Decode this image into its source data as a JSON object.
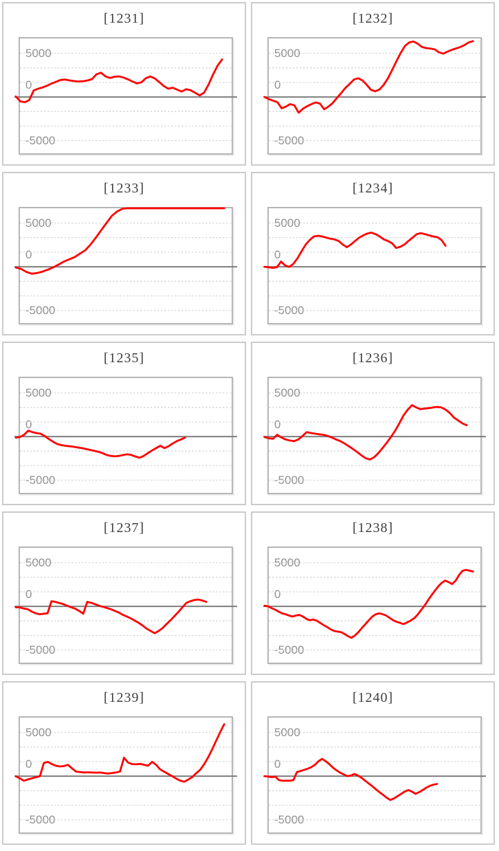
{
  "page": {
    "background": "#ffffff"
  },
  "axis": {
    "labels": [
      "5000",
      "0",
      "-5000"
    ],
    "label_values": [
      5000,
      0,
      -5000
    ],
    "label_color": "#8f8f8f",
    "gridline_values": [
      5000,
      3333,
      1667,
      0,
      -1667,
      -3333,
      -5000
    ],
    "gridline_color": "#dadada",
    "zero_line_color": "#7d7d7d",
    "ylim_top": 6700,
    "ylim_bottom": -6450,
    "grid_on": true
  },
  "series_style": {
    "color": "#fe0000",
    "width": 2.8
  },
  "chart_data": [
    {
      "type": "line",
      "title": "[1231]",
      "machine_no": "1231",
      "x_end_fraction": 0.955,
      "values": [
        60,
        -500,
        -600,
        -350,
        750,
        950,
        1100,
        1300,
        1550,
        1750,
        1950,
        2000,
        1900,
        1820,
        1780,
        1800,
        1900,
        2050,
        2600,
        2780,
        2350,
        2180,
        2320,
        2350,
        2230,
        2020,
        1780,
        1560,
        1680,
        2150,
        2350,
        2120,
        1700,
        1250,
        950,
        1060,
        830,
        620,
        900,
        760,
        480,
        180,
        500,
        1450,
        2600,
        3600,
        4300
      ]
    },
    {
      "type": "line",
      "title": "[1232]",
      "machine_no": "1232",
      "x_end_fraction": 0.965,
      "values": [
        0,
        -250,
        -420,
        -600,
        -1300,
        -1100,
        -820,
        -950,
        -1800,
        -1350,
        -1060,
        -820,
        -620,
        -760,
        -1400,
        -1100,
        -700,
        -100,
        450,
        1050,
        1500,
        2000,
        2150,
        1900,
        1400,
        820,
        650,
        860,
        1400,
        2150,
        3100,
        4100,
        5050,
        5850,
        6250,
        6350,
        6100,
        5720,
        5600,
        5550,
        5450,
        5120,
        4960,
        5200,
        5400,
        5560,
        5720,
        5950,
        6250,
        6400
      ]
    },
    {
      "type": "line",
      "title": "[1233]",
      "machine_no": "1233",
      "x_end_fraction": 0.965,
      "values": [
        -80,
        -250,
        -600,
        -800,
        -720,
        -550,
        -330,
        -70,
        250,
        600,
        850,
        1100,
        1500,
        1900,
        2550,
        3350,
        4200,
        5050,
        5850,
        6350,
        6650,
        6700,
        6700,
        6700,
        6700,
        6700,
        6700,
        6700,
        6700,
        6700,
        6700,
        6700,
        6700,
        6700,
        6700,
        6700,
        6700,
        6700,
        6700,
        6700
      ]
    },
    {
      "type": "line",
      "title": "[1234]",
      "machine_no": "1234",
      "x_end_fraction": 0.835,
      "values": [
        0,
        -60,
        -120,
        -60,
        600,
        150,
        -20,
        340,
        980,
        1770,
        2550,
        3080,
        3470,
        3550,
        3470,
        3340,
        3210,
        3130,
        2950,
        2550,
        2240,
        2550,
        2950,
        3340,
        3600,
        3810,
        3915,
        3730,
        3470,
        3130,
        2950,
        2690,
        2160,
        2290,
        2550,
        2950,
        3340,
        3730,
        3860,
        3730,
        3600,
        3470,
        3390,
        3080,
        2400
      ]
    },
    {
      "type": "line",
      "title": "[1235]",
      "machine_no": "1235",
      "x_end_fraction": 0.78,
      "values": [
        -120,
        -60,
        200,
        670,
        510,
        400,
        330,
        60,
        -280,
        -590,
        -850,
        -980,
        -1060,
        -1110,
        -1170,
        -1250,
        -1320,
        -1430,
        -1530,
        -1640,
        -1740,
        -1900,
        -2110,
        -2210,
        -2270,
        -2210,
        -2110,
        -2030,
        -2110,
        -2290,
        -2430,
        -2210,
        -1900,
        -1590,
        -1320,
        -1060,
        -1320,
        -1110,
        -800,
        -530,
        -330,
        -120
      ]
    },
    {
      "type": "line",
      "title": "[1236]",
      "machine_no": "1236",
      "x_end_fraction": 0.935,
      "values": [
        -60,
        -200,
        -250,
        200,
        -120,
        -330,
        -460,
        -530,
        -330,
        60,
        510,
        400,
        330,
        250,
        200,
        60,
        -120,
        -330,
        -530,
        -800,
        -1110,
        -1430,
        -1770,
        -2160,
        -2480,
        -2630,
        -2370,
        -1900,
        -1320,
        -720,
        -60,
        670,
        1510,
        2430,
        3080,
        3600,
        3340,
        3130,
        3210,
        3260,
        3340,
        3390,
        3340,
        3080,
        2690,
        2160,
        1840,
        1500,
        1300
      ]
    },
    {
      "type": "line",
      "title": "[1237]",
      "machine_no": "1237",
      "x_end_fraction": 0.88,
      "values": [
        -100,
        -120,
        -250,
        -330,
        -590,
        -800,
        -905,
        -850,
        -800,
        590,
        510,
        380,
        250,
        60,
        -120,
        -280,
        -530,
        -850,
        510,
        400,
        250,
        60,
        -60,
        -200,
        -330,
        -530,
        -720,
        -980,
        -1170,
        -1380,
        -1640,
        -1900,
        -2210,
        -2560,
        -2820,
        -3080,
        -2820,
        -2480,
        -2030,
        -1590,
        -1110,
        -640,
        -120,
        400,
        590,
        720,
        780,
        670,
        510
      ]
    },
    {
      "type": "line",
      "title": "[1238]",
      "machine_no": "1238",
      "x_end_fraction": 0.965,
      "values": [
        60,
        0,
        -200,
        -380,
        -590,
        -800,
        -905,
        -1060,
        -1170,
        -1060,
        -980,
        -1170,
        -1430,
        -1590,
        -1510,
        -1640,
        -1900,
        -2160,
        -2370,
        -2630,
        -2820,
        -2890,
        -2950,
        -3160,
        -3420,
        -3600,
        -3340,
        -2950,
        -2480,
        -2030,
        -1590,
        -1170,
        -905,
        -800,
        -905,
        -1060,
        -1320,
        -1590,
        -1770,
        -1900,
        -2030,
        -1840,
        -1640,
        -1380,
        -980,
        -460,
        60,
        670,
        1250,
        1770,
        2290,
        2690,
        2950,
        2770,
        2560,
        2950,
        3600,
        4080,
        4180,
        4080,
        3990
      ]
    },
    {
      "type": "line",
      "title": "[1239]",
      "machine_no": "1239",
      "x_end_fraction": 0.965,
      "values": [
        -20,
        -250,
        -530,
        -380,
        -250,
        -120,
        -20,
        1500,
        1640,
        1380,
        1190,
        1110,
        1160,
        1300,
        900,
        530,
        470,
        420,
        440,
        420,
        400,
        420,
        350,
        300,
        350,
        420,
        530,
        2110,
        1560,
        1380,
        1350,
        1400,
        1300,
        1190,
        1640,
        1300,
        780,
        510,
        250,
        0,
        -280,
        -510,
        -640,
        -400,
        -120,
        330,
        720,
        1380,
        2160,
        3080,
        4080,
        5050,
        5950
      ]
    },
    {
      "type": "line",
      "title": "[1240]",
      "machine_no": "1240",
      "x_end_fraction": 0.795,
      "values": [
        0,
        -60,
        -120,
        -60,
        -460,
        -530,
        -510,
        -530,
        -460,
        460,
        590,
        720,
        850,
        1030,
        1300,
        1710,
        1980,
        1710,
        1380,
        980,
        670,
        400,
        200,
        0,
        60,
        250,
        60,
        -200,
        -530,
        -850,
        -1170,
        -1510,
        -1840,
        -2160,
        -2480,
        -2730,
        -2560,
        -2290,
        -2030,
        -1770,
        -1590,
        -1770,
        -2030,
        -1840,
        -1590,
        -1320,
        -1110,
        -980,
        -900
      ]
    }
  ]
}
